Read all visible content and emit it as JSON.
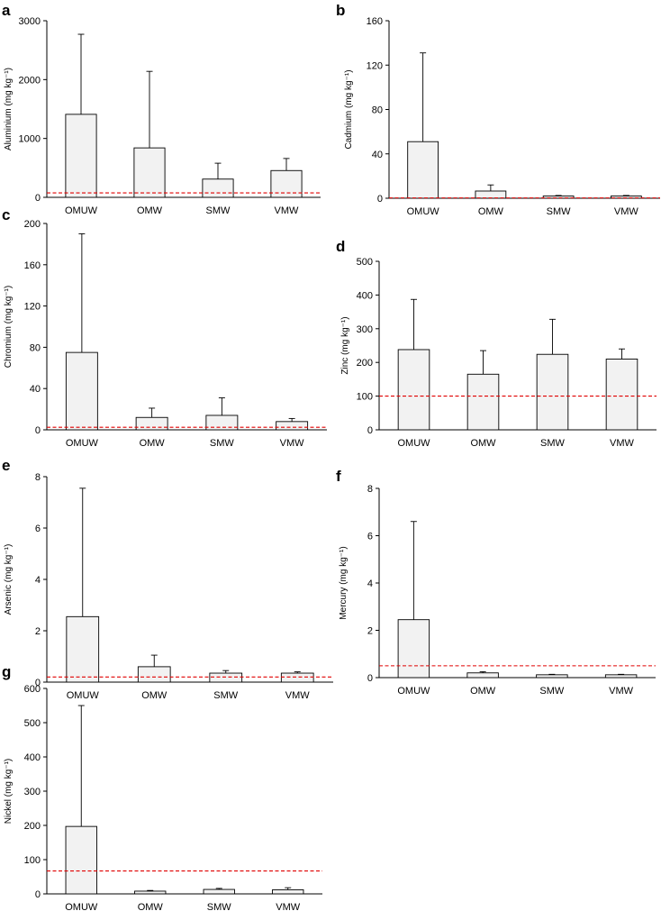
{
  "colors": {
    "bar_fill": "#f2f2f2",
    "bar_stroke": "#000000",
    "reference_line": "#e00000"
  },
  "chart_data": [
    {
      "type": "bar",
      "panel": "a",
      "ylabel": "Aluminium (mg kg⁻¹)",
      "categories": [
        "OMUW",
        "OMW",
        "SMW",
        "VMW"
      ],
      "values": [
        1410,
        840,
        310,
        455
      ],
      "errors": [
        1360,
        1300,
        270,
        205
      ],
      "reference_line": 75,
      "ylim": [
        0,
        3000
      ],
      "yticks": [
        0,
        1000,
        2000,
        3000
      ]
    },
    {
      "type": "bar",
      "panel": "b",
      "ylabel": "Cadmium (mg kg⁻¹)",
      "categories": [
        "OMUW",
        "OMW",
        "SMW",
        "VMW"
      ],
      "values": [
        51,
        6.5,
        2,
        2
      ],
      "errors": [
        80,
        5.5,
        0.5,
        0.5
      ],
      "reference_line": 0.3,
      "ylim": [
        0,
        160
      ],
      "yticks": [
        0,
        40,
        80,
        120,
        160
      ]
    },
    {
      "type": "bar",
      "panel": "c",
      "ylabel": "Chromium (mg kg⁻¹)",
      "categories": [
        "OMUW",
        "OMW",
        "SMW",
        "VMW"
      ],
      "values": [
        75,
        12,
        14,
        8
      ],
      "errors": [
        115,
        9,
        17,
        3
      ],
      "reference_line": 2.5,
      "ylim": [
        0,
        200
      ],
      "yticks": [
        0,
        40,
        80,
        120,
        160,
        200
      ]
    },
    {
      "type": "bar",
      "panel": "d",
      "ylabel": "Zinc (mg kg⁻¹)",
      "categories": [
        "OMUW",
        "OMW",
        "SMW",
        "VMW"
      ],
      "values": [
        238,
        165,
        224,
        210
      ],
      "errors": [
        149,
        70,
        104,
        30
      ],
      "reference_line": 100,
      "ylim": [
        0,
        500
      ],
      "yticks": [
        0,
        100,
        200,
        300,
        400,
        500
      ]
    },
    {
      "type": "bar",
      "panel": "e",
      "ylabel": "Arsenic (mg kg⁻¹)",
      "categories": [
        "OMUW",
        "OMW",
        "SMW",
        "VMW"
      ],
      "values": [
        2.55,
        0.6,
        0.35,
        0.35
      ],
      "errors": [
        5.0,
        0.45,
        0.1,
        0.05
      ],
      "reference_line": 0.2,
      "ylim": [
        0,
        8
      ],
      "yticks": [
        0,
        2,
        4,
        6,
        8
      ]
    },
    {
      "type": "bar",
      "panel": "f",
      "ylabel": "Mercury (mg kg⁻¹)",
      "categories": [
        "OMUW",
        "OMW",
        "SMW",
        "VMW"
      ],
      "values": [
        2.45,
        0.2,
        0.12,
        0.12
      ],
      "errors": [
        4.15,
        0.05,
        0.02,
        0.02
      ],
      "reference_line": 0.5,
      "ylim": [
        0,
        8
      ],
      "yticks": [
        0,
        2,
        4,
        6,
        8
      ]
    },
    {
      "type": "bar",
      "panel": "g",
      "ylabel": "Nickel (mg kg⁻¹)",
      "categories": [
        "OMUW",
        "OMW",
        "SMW",
        "VMW"
      ],
      "values": [
        197,
        8,
        13,
        12
      ],
      "errors": [
        353,
        2,
        3,
        6
      ],
      "reference_line": 67,
      "ylim": [
        0,
        600
      ],
      "yticks": [
        0,
        100,
        200,
        300,
        400,
        500,
        600
      ]
    }
  ]
}
